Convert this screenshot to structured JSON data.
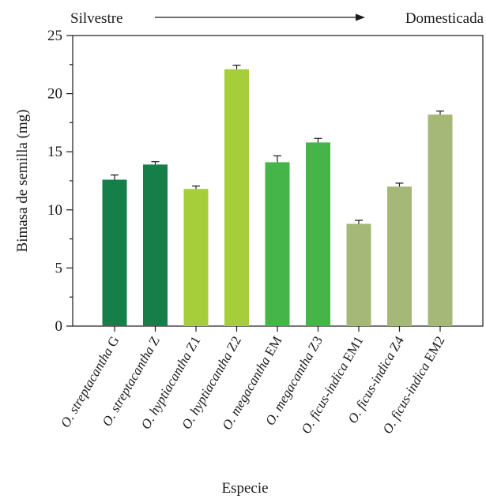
{
  "header": {
    "left_label": "Silvestre",
    "right_label": "Domesticada"
  },
  "chart_data": {
    "type": "bar",
    "title": "",
    "xlabel": "Especie",
    "ylabel": "Bimasa de semilla (mg)",
    "ylim": [
      0,
      25
    ],
    "yticks": [
      0,
      5,
      10,
      15,
      20,
      25
    ],
    "grid": false,
    "categories": [
      {
        "species": "O. streptacantha",
        "code": "G"
      },
      {
        "species": "O. streptacantha",
        "code": "Z"
      },
      {
        "species": "O. hyptiacantha",
        "code": "Z1"
      },
      {
        "species": "O. hyptiacantha",
        "code": "Z2"
      },
      {
        "species": "O. megacantha",
        "code": "EM"
      },
      {
        "species": "O. megacantha",
        "code": "Z3"
      },
      {
        "species": "O. ficus-indica",
        "code": "EM1"
      },
      {
        "species": "O. ficus-indica",
        "code": "Z4"
      },
      {
        "species": "O. ficus-indica",
        "code": "EM2"
      }
    ],
    "values": [
      12.6,
      13.9,
      11.8,
      22.1,
      14.1,
      15.8,
      8.8,
      12.0,
      18.2
    ],
    "errors": [
      0.4,
      0.25,
      0.25,
      0.35,
      0.55,
      0.35,
      0.3,
      0.3,
      0.3
    ],
    "colors": [
      "#167e48",
      "#167e48",
      "#a6cd3a",
      "#a6cd3a",
      "#45b549",
      "#45b549",
      "#a6b877",
      "#a6b877",
      "#a6b877"
    ]
  }
}
